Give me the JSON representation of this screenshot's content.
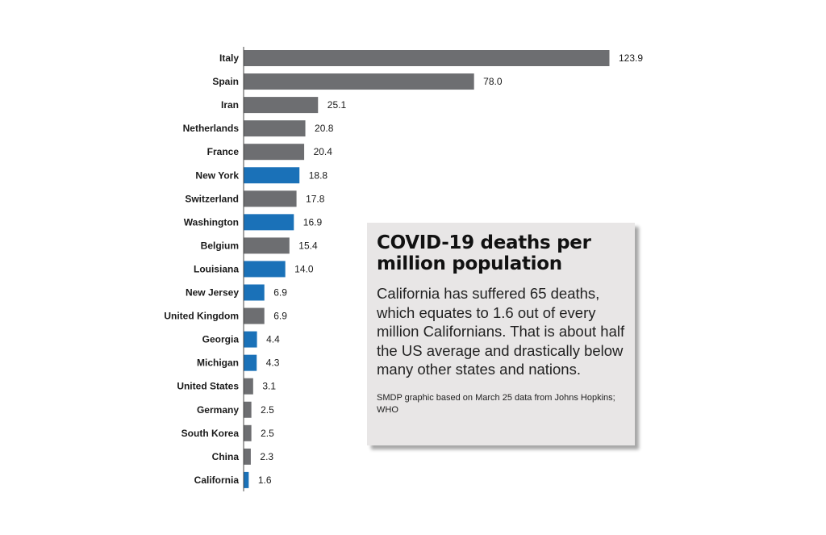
{
  "colors": {
    "country": "#6d6e71",
    "us_state": "#1a71b8",
    "box_background": "#e8e6e6"
  },
  "chart_data": {
    "type": "bar",
    "orientation": "horizontal",
    "categories": [
      "Italy",
      "Spain",
      "Iran",
      "Netherlands",
      "France",
      "New York",
      "Switzerland",
      "Washington",
      "Belgium",
      "Louisiana",
      "New Jersey",
      "United Kingdom",
      "Georgia",
      "Michigan",
      "United States",
      "Germany",
      "South Korea",
      "China",
      "California"
    ],
    "values": [
      123.9,
      78.0,
      25.1,
      20.8,
      20.4,
      18.8,
      17.8,
      16.9,
      15.4,
      14.0,
      6.9,
      6.9,
      4.4,
      4.3,
      3.1,
      2.5,
      2.5,
      2.3,
      1.6
    ],
    "value_labels": [
      "123.9",
      "78.0",
      "25.1",
      "20.8",
      "20.4",
      "18.8",
      "17.8",
      "16.9",
      "15.4",
      "14.0",
      "6.9",
      "6.9",
      "4.4",
      "4.3",
      "3.1",
      "2.5",
      "2.5",
      "2.3",
      "1.6"
    ],
    "group": [
      "country",
      "country",
      "country",
      "country",
      "country",
      "state",
      "country",
      "state",
      "country",
      "state",
      "state",
      "country",
      "state",
      "state",
      "country",
      "country",
      "country",
      "country",
      "state"
    ],
    "xlim": [
      0,
      123.9
    ],
    "grid": false,
    "legend": "none"
  },
  "info_box": {
    "title": "COVID-19 deaths per million population",
    "body": "California has suffered 65 deaths, which equates to 1.6 out of every million Californians. That is about half the US average and drastically below many other states and nations.",
    "source": "SMDP graphic based on March 25 data from Johns Hopkins; WHO"
  }
}
